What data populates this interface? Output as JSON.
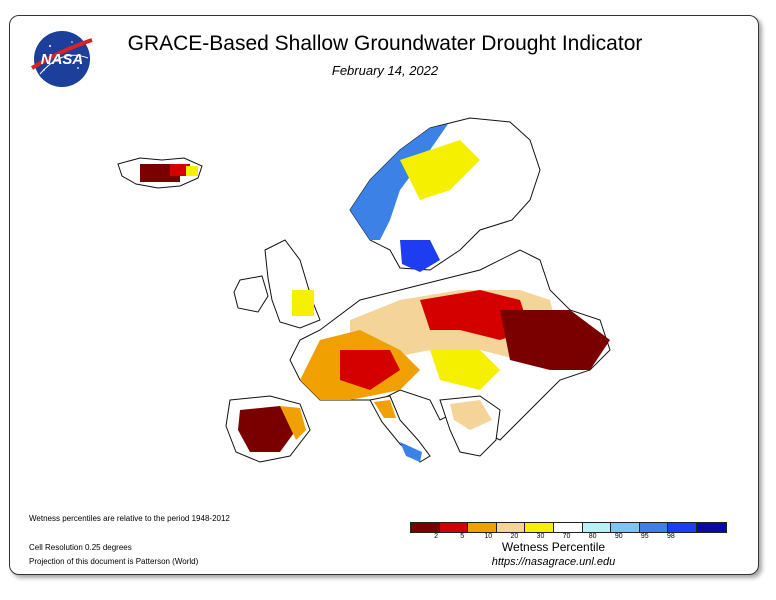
{
  "title": "GRACE-Based Shallow Groundwater Drought Indicator",
  "date": "February 14, 2022",
  "logo_text": "NASA",
  "notes": {
    "wetness_period": "Wetness percentiles are relative to the period 1948-2012",
    "cell_resolution": "Cell Resolution 0.25 degrees",
    "projection": "Projection of this document is Patterson (World)"
  },
  "legend": {
    "title": "Wetness Percentile",
    "colors": [
      "#7a0000",
      "#d40000",
      "#f0a000",
      "#f5d49a",
      "#f5f000",
      "#ffffff",
      "#b8f0f5",
      "#78c8f0",
      "#3c82e6",
      "#1e3cf0",
      "#0a0aa0"
    ],
    "tick_labels": [
      "2",
      "5",
      "10",
      "20",
      "30",
      "70",
      "80",
      "90",
      "95",
      "98"
    ]
  },
  "url": "https://nasagrace.unl.edu",
  "map_colors": {
    "land": "#ffffff",
    "border": "#111111"
  }
}
